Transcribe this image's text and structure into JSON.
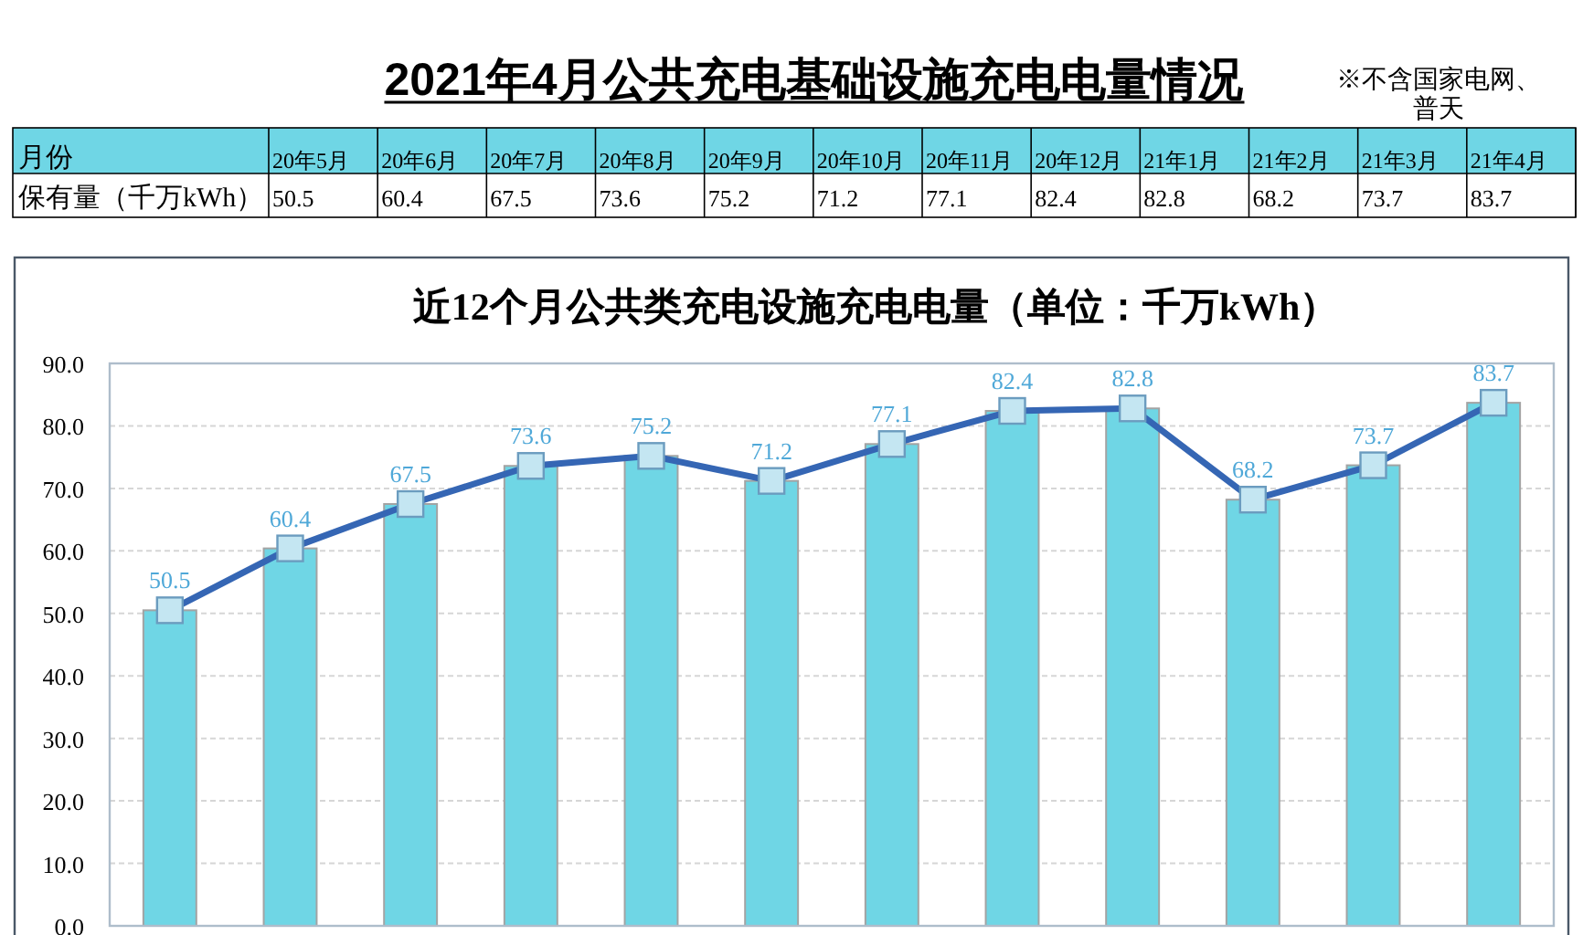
{
  "chart_data": [
    {
      "type": "other",
      "title": "2021年4月公共充电基础设施充电电量情况",
      "annotations": [
        "※不含国家电网、普天"
      ],
      "xlabel": "月份",
      "ylabel": "保有量（千万kWh）",
      "categories": [
        "20年5月",
        "20年6月",
        "20年7月",
        "20年8月",
        "20年9月",
        "20年10月",
        "20年11月",
        "20年12月",
        "21年1月",
        "21年2月",
        "21年3月",
        "21年4月"
      ],
      "values": [
        50.5,
        60.4,
        67.5,
        73.6,
        75.2,
        71.2,
        77.1,
        82.4,
        82.8,
        68.2,
        73.7,
        83.7
      ],
      "data_labels": true
    },
    {
      "type": "bar",
      "title": "近12个月公共类充电设施充电电量（单位：千万kWh）",
      "categories": [
        null,
        null,
        null,
        null,
        null,
        null,
        null,
        null,
        null,
        null,
        null,
        null
      ],
      "series": [
        {
          "color": "#6fd6e5",
          "values": [
            50.5,
            60.4,
            67.5,
            73.6,
            75.2,
            71.2,
            77.1,
            82.4,
            82.8,
            68.2,
            73.7,
            83.7
          ]
        },
        {
          "type": "line",
          "color": "#3566b4",
          "values": [
            50.5,
            60.4,
            67.5,
            73.6,
            75.2,
            71.2,
            77.1,
            82.4,
            82.8,
            68.2,
            73.7,
            83.7
          ],
          "value_labels": [
            "50.5",
            "60.4",
            "67.5",
            "73.6",
            "75.2",
            "71.2",
            "77.1",
            "82.4",
            "82.8",
            "68.2",
            "73.7",
            "83.7"
          ]
        }
      ],
      "ylim": [
        0,
        90
      ],
      "yticks": [
        {
          "value": 0,
          "label": "0.0"
        },
        {
          "value": 10,
          "label": "10.0"
        },
        {
          "value": 20,
          "label": "20.0"
        },
        {
          "value": 30,
          "label": "30.0"
        },
        {
          "value": 40,
          "label": "40.0"
        },
        {
          "value": 50,
          "label": "50.0"
        },
        {
          "value": 60,
          "label": "60.0"
        },
        {
          "value": 70,
          "label": "70.0"
        },
        {
          "value": 80,
          "label": "80.0"
        },
        {
          "value": 90,
          "label": "90.0"
        }
      ],
      "grid": "y",
      "marker": "square",
      "tick_labels": "y"
    }
  ]
}
